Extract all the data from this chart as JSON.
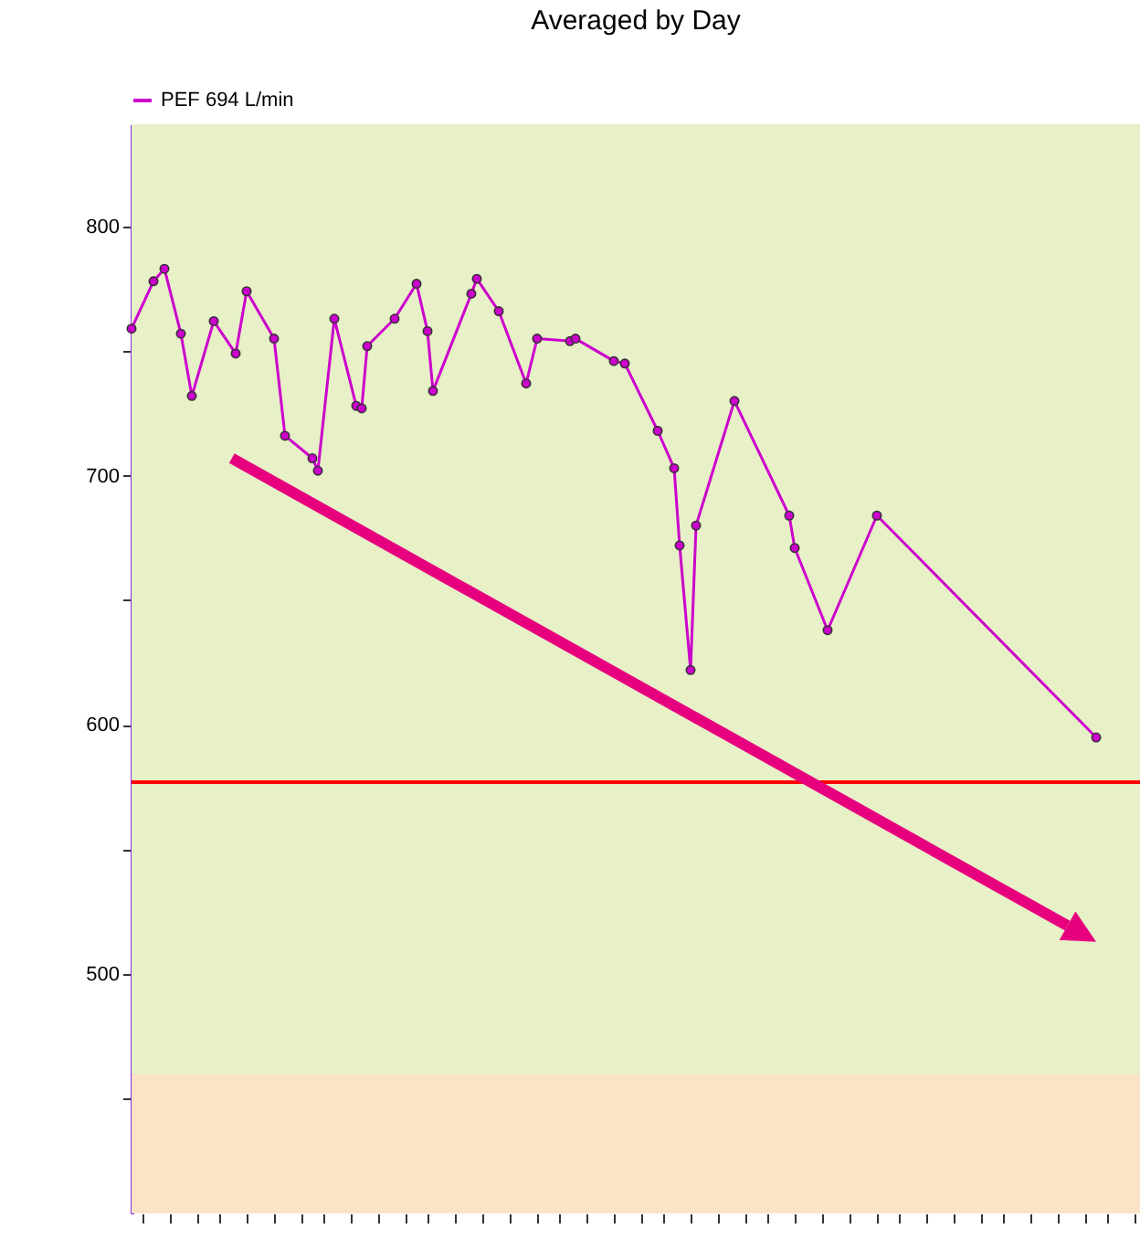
{
  "chart_data": {
    "type": "line",
    "title": "Averaged by Day",
    "categories": [
      null,
      null,
      null,
      null,
      null,
      null,
      null,
      null,
      null,
      null,
      null,
      null,
      null,
      null,
      null,
      null,
      null,
      null,
      null,
      null,
      null,
      null,
      null,
      null,
      null,
      null,
      null,
      null,
      null,
      null,
      null,
      null,
      null,
      null,
      null,
      null,
      null,
      null,
      null,
      null,
      null,
      null,
      null,
      null,
      null,
      null,
      null,
      null,
      null,
      null,
      null,
      null,
      null,
      null,
      null,
      null,
      null,
      null,
      null,
      null,
      null,
      null,
      null,
      null,
      null,
      null,
      null,
      null,
      null,
      null,
      null,
      null,
      null,
      null,
      null,
      null,
      null,
      null,
      null,
      null,
      null,
      null,
      null,
      null,
      null,
      null,
      null,
      null,
      null,
      null,
      null,
      null,
      null,
      null,
      null,
      null,
      null,
      null,
      null,
      null,
      null,
      null,
      null,
      null,
      null,
      null,
      null,
      null,
      null,
      null,
      null,
      null,
      null,
      null,
      null,
      null,
      null,
      null,
      null,
      null,
      null,
      null,
      null,
      null,
      null,
      null,
      null,
      null,
      null,
      null,
      null,
      null,
      null,
      null,
      null,
      null,
      null,
      null,
      null,
      null,
      null,
      null,
      null,
      null,
      null,
      null,
      null,
      null,
      null,
      null,
      null,
      null,
      null,
      null,
      null,
      null,
      null,
      null,
      null,
      null,
      null,
      null,
      null,
      null,
      null,
      null,
      null,
      null,
      null,
      null,
      null,
      null,
      null,
      null,
      null,
      null,
      null,
      null,
      null,
      null,
      null,
      null,
      null,
      null,
      null
    ],
    "series": [
      {
        "name": "PEF 694 L/min",
        "color": "#cc00cc",
        "values": [
          759,
          null,
          null,
          null,
          778,
          null,
          783,
          null,
          null,
          757,
          null,
          732,
          null,
          null,
          null,
          762,
          null,
          null,
          null,
          749,
          null,
          774,
          null,
          null,
          null,
          null,
          755,
          null,
          716,
          null,
          null,
          null,
          null,
          707,
          702,
          null,
          null,
          763,
          null,
          null,
          null,
          728,
          727,
          752,
          null,
          null,
          null,
          null,
          763,
          null,
          null,
          null,
          777,
          null,
          758,
          734,
          null,
          null,
          null,
          null,
          null,
          null,
          773,
          779,
          null,
          null,
          null,
          766,
          null,
          null,
          null,
          null,
          737,
          null,
          755,
          null,
          null,
          null,
          null,
          null,
          754,
          755,
          null,
          null,
          null,
          null,
          null,
          null,
          746,
          null,
          745,
          null,
          null,
          null,
          null,
          null,
          718,
          null,
          null,
          703,
          672,
          null,
          622,
          680,
          null,
          null,
          null,
          null,
          null,
          null,
          730,
          null,
          null,
          null,
          null,
          null,
          null,
          null,
          null,
          null,
          684,
          671,
          null,
          null,
          null,
          null,
          null,
          638,
          null,
          null,
          null,
          null,
          null,
          null,
          null,
          null,
          684,
          null,
          null,
          null,
          null,
          null,
          null,
          null,
          null,
          null,
          null,
          null,
          null,
          null,
          null,
          null,
          null,
          null,
          null,
          null,
          null,
          null,
          null,
          null,
          null,
          null,
          null,
          null,
          null,
          null,
          null,
          null,
          null,
          null,
          null,
          null,
          null,
          null,
          null,
          null,
          595,
          null,
          null,
          null,
          null,
          null,
          null,
          null,
          null
        ]
      }
    ],
    "ylim": [
      404,
      841
    ],
    "yticks": [
      {
        "value": 450,
        "label": null
      },
      500,
      {
        "value": 550,
        "label": null
      },
      600,
      {
        "value": 650,
        "label": null
      },
      700,
      {
        "value": 750,
        "label": null
      },
      800
    ],
    "bands": [
      {
        "axis": "y",
        "from": 460,
        "to": 841,
        "color": "#e8f0c8"
      },
      {
        "axis": "y",
        "from": 404,
        "to": 460,
        "color": "#fbe3c6"
      }
    ],
    "ref_lines": [
      {
        "axis": "y",
        "value": 577,
        "color": "#ff0000"
      }
    ],
    "marker": "circle",
    "line_style": "solid",
    "grid": false,
    "legend": "top",
    "tick_labels": "y"
  }
}
